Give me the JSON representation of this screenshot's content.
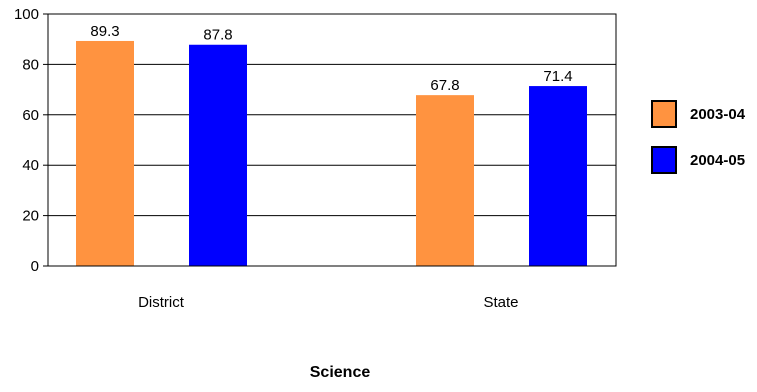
{
  "chart_data": {
    "type": "bar",
    "title": "Science",
    "xlabel": "",
    "ylabel": "",
    "categories": [
      "District",
      "State"
    ],
    "series": [
      {
        "name": "2003-04",
        "values": [
          89.3,
          67.8
        ],
        "color": "#FF9340"
      },
      {
        "name": "2004-05",
        "values": [
          87.8,
          71.4
        ],
        "color": "#0000FF"
      }
    ],
    "ylim": [
      0,
      100
    ],
    "yticks": [
      0,
      20,
      40,
      60,
      80,
      100
    ],
    "grid": true,
    "legend": "right",
    "data_labels": true
  }
}
